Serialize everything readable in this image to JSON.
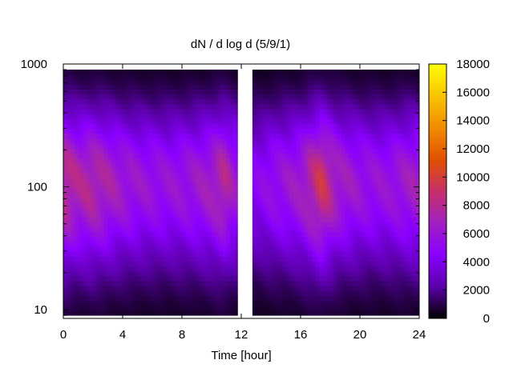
{
  "chart_data": {
    "type": "heatmap",
    "title": "dN / d log d (5/9/1)",
    "xlabel": "Time [hour]",
    "ylabel": "",
    "xlim": [
      0,
      24
    ],
    "ylim": [
      8.5,
      1000
    ],
    "y_scale": "log",
    "x_ticks": [
      0,
      4,
      8,
      12,
      16,
      20,
      24
    ],
    "y_ticks": [
      10,
      100,
      1000
    ],
    "colorbar": {
      "range": [
        0,
        18000
      ],
      "ticks": [
        0,
        2000,
        4000,
        6000,
        8000,
        10000,
        12000,
        14000,
        16000,
        18000
      ],
      "palette": [
        "#000000",
        "#5a00a8",
        "#8a00ff",
        "#a020c0",
        "#c8306a",
        "#e05000",
        "#f08c00",
        "#f8c400",
        "#ffff00"
      ]
    },
    "diameter_range": [
      9,
      900
    ],
    "peak_diameter": 110,
    "missing_time_range": [
      11.7,
      12.8
    ],
    "time_profile": [
      {
        "t": 0.0,
        "peak": 9500
      },
      {
        "t": 1.0,
        "peak": 8200
      },
      {
        "t": 2.0,
        "peak": 8600
      },
      {
        "t": 3.0,
        "peak": 7800
      },
      {
        "t": 4.0,
        "peak": 7000
      },
      {
        "t": 5.0,
        "peak": 6600
      },
      {
        "t": 6.0,
        "peak": 6400
      },
      {
        "t": 7.0,
        "peak": 6300
      },
      {
        "t": 8.0,
        "peak": 6500
      },
      {
        "t": 9.0,
        "peak": 6800
      },
      {
        "t": 10.0,
        "peak": 7500
      },
      {
        "t": 10.8,
        "peak": 8800
      },
      {
        "t": 11.5,
        "peak": 7000
      },
      {
        "t": 12.8,
        "peak": 5000
      },
      {
        "t": 14.0,
        "peak": 6000
      },
      {
        "t": 15.0,
        "peak": 6500
      },
      {
        "t": 16.0,
        "peak": 7200
      },
      {
        "t": 17.4,
        "peak": 10200
      },
      {
        "t": 18.5,
        "peak": 7500
      },
      {
        "t": 20.0,
        "peak": 6500
      },
      {
        "t": 21.0,
        "peak": 6300
      },
      {
        "t": 22.0,
        "peak": 6400
      },
      {
        "t": 23.0,
        "peak": 7000
      },
      {
        "t": 24.0,
        "peak": 7400
      }
    ]
  }
}
